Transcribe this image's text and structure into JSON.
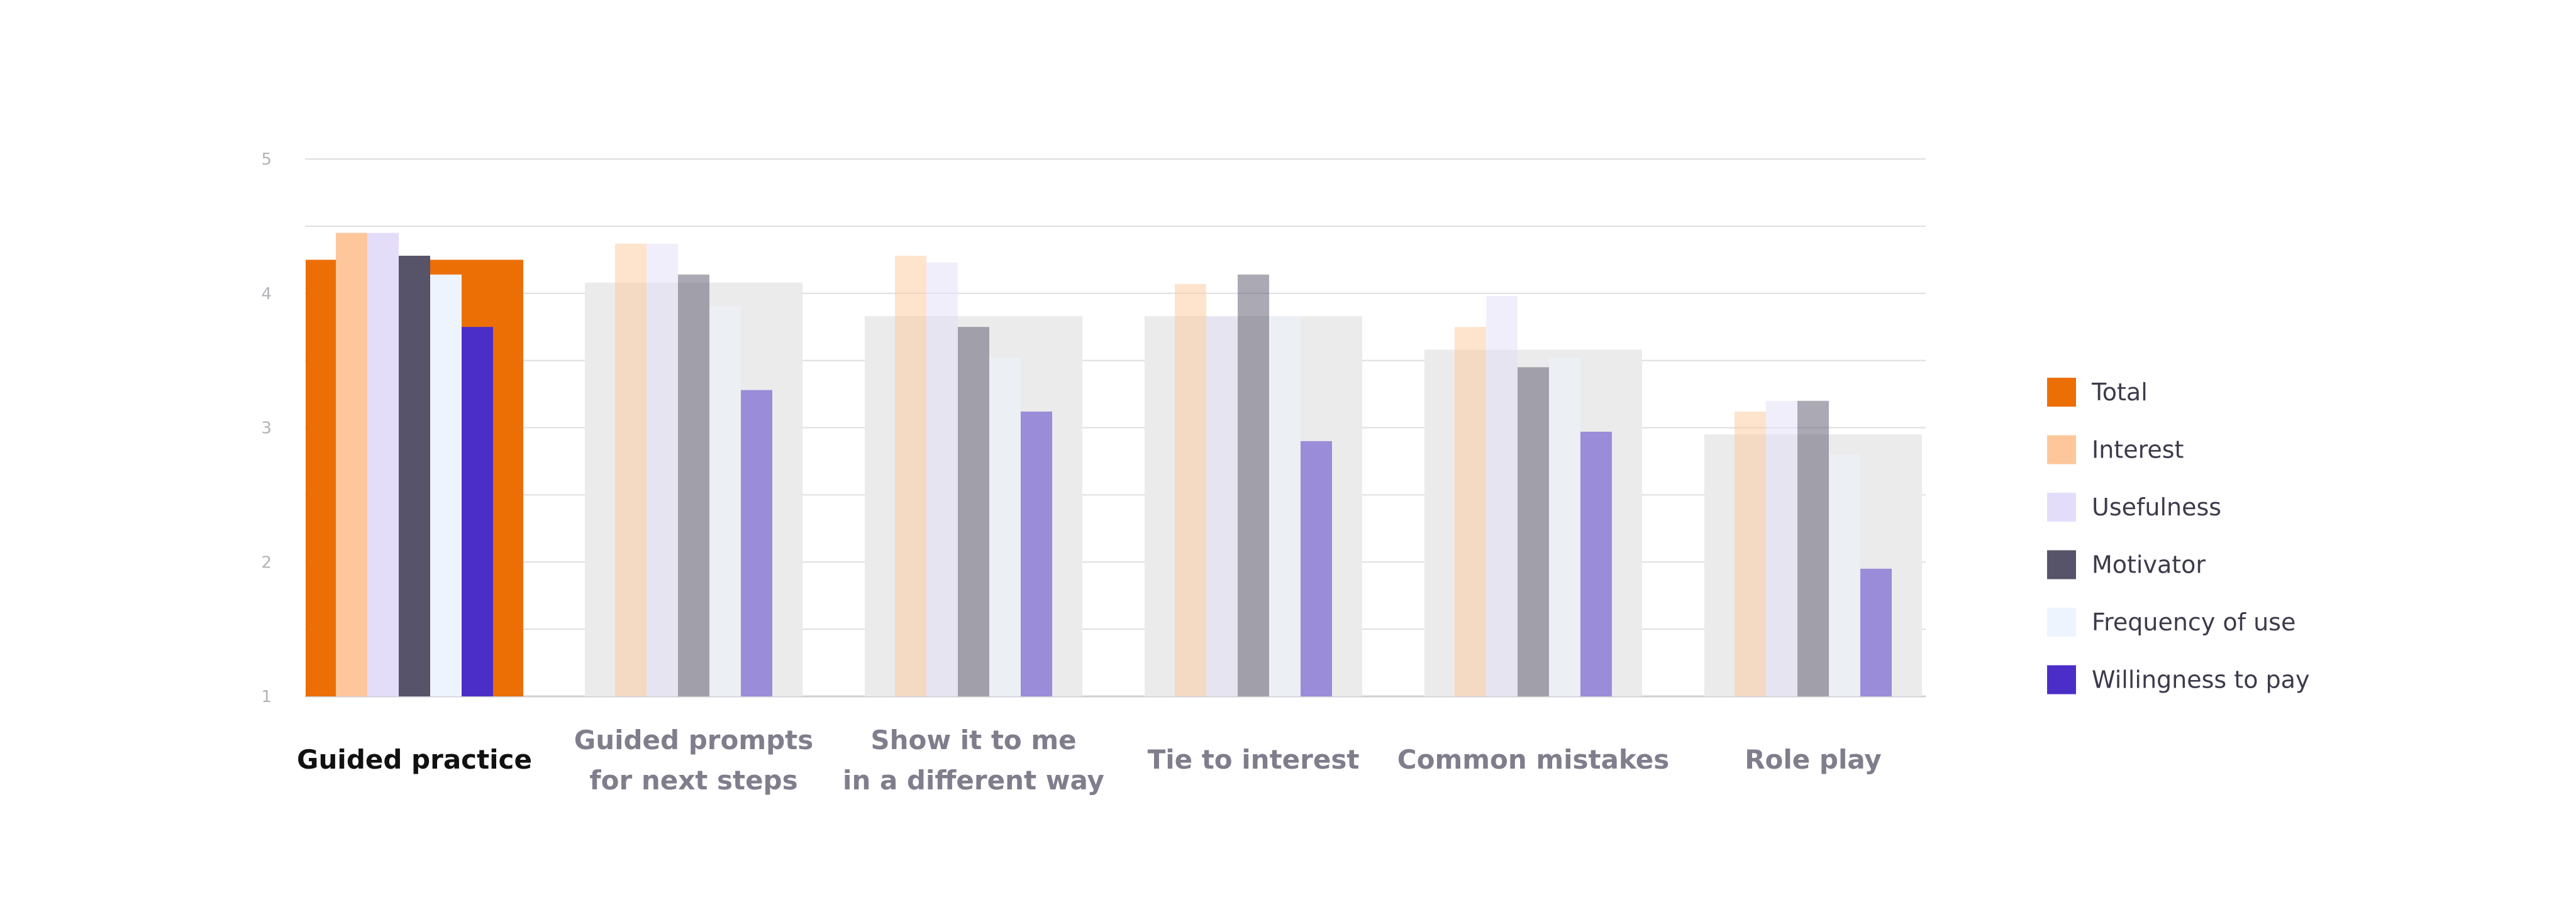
{
  "chart_data": {
    "type": "bar",
    "title": "",
    "xlabel": "",
    "ylabel": "",
    "ylim": [
      1,
      5
    ],
    "yticks": [
      "1",
      "2",
      "3",
      "4",
      "5"
    ],
    "grid": true,
    "legend_position": "right",
    "highlighted_category": 0,
    "categories": [
      [
        "Guided practice"
      ],
      [
        "Guided prompts",
        "for next steps"
      ],
      [
        "Show it to me",
        "in a different way"
      ],
      [
        "Tie to interest"
      ],
      [
        "Common mistakes"
      ],
      [
        "Role play"
      ]
    ],
    "total": {
      "name": "Total",
      "color": "#ec6f06",
      "values": [
        4.25,
        4.08,
        3.83,
        3.83,
        3.58,
        2.95
      ]
    },
    "series": [
      {
        "name": "Interest",
        "color": "#fdc79b",
        "values": [
          4.45,
          4.37,
          4.28,
          4.07,
          3.75,
          3.12
        ]
      },
      {
        "name": "Usefulness",
        "color": "#e4ddfa",
        "values": [
          4.45,
          4.37,
          4.23,
          3.83,
          3.98,
          3.2
        ]
      },
      {
        "name": "Motivator",
        "color": "#575368",
        "values": [
          4.28,
          4.14,
          3.75,
          4.14,
          3.45,
          3.2
        ]
      },
      {
        "name": "Frequency of use",
        "color": "#eef4fd",
        "values": [
          4.14,
          3.9,
          3.52,
          3.83,
          3.52,
          2.8
        ]
      },
      {
        "name": "Willingness to pay",
        "color": "#4a2ec7",
        "values": [
          3.75,
          3.28,
          3.12,
          2.9,
          2.97,
          1.95
        ]
      }
    ]
  }
}
